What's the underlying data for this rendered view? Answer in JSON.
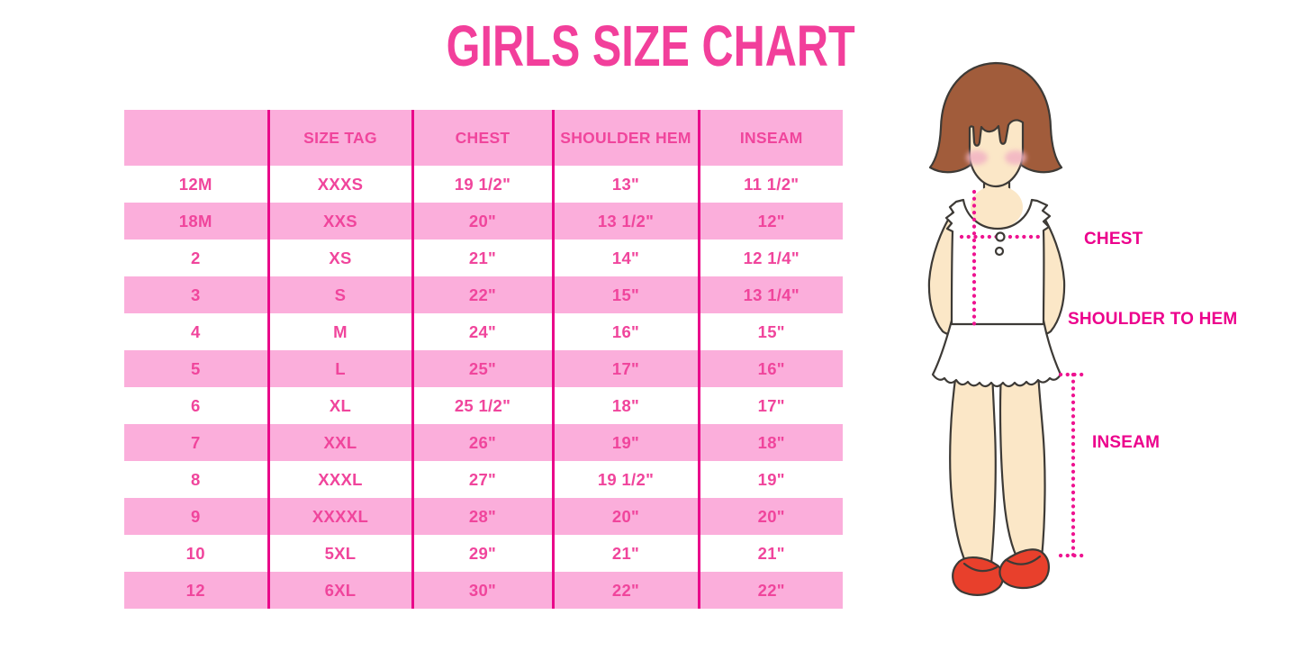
{
  "title": "GIRLS SIZE CHART",
  "table": {
    "headers": [
      "",
      "SIZE TAG",
      "CHEST",
      "SHOULDER HEM",
      "INSEAM"
    ],
    "rows": [
      [
        "12M",
        "XXXS",
        "19 1/2\"",
        "13\"",
        "11 1/2\""
      ],
      [
        "18M",
        "XXS",
        "20\"",
        "13 1/2\"",
        "12\""
      ],
      [
        "2",
        "XS",
        "21\"",
        "14\"",
        "12 1/4\""
      ],
      [
        "3",
        "S",
        "22\"",
        "15\"",
        "13 1/4\""
      ],
      [
        "4",
        "M",
        "24\"",
        "16\"",
        "15\""
      ],
      [
        "5",
        "L",
        "25\"",
        "17\"",
        "16\""
      ],
      [
        "6",
        "XL",
        "25 1/2\"",
        "18\"",
        "17\""
      ],
      [
        "7",
        "XXL",
        "26\"",
        "19\"",
        "18\""
      ],
      [
        "8",
        "XXXL",
        "27\"",
        "19 1/2\"",
        "19\""
      ],
      [
        "9",
        "XXXXL",
        "28\"",
        "20\"",
        "20\""
      ],
      [
        "10",
        "5XL",
        "29\"",
        "21\"",
        "21\""
      ],
      [
        "12",
        "6XL",
        "30\"",
        "22\"",
        "22\""
      ]
    ]
  },
  "diagram": {
    "chest_label": "CHEST",
    "shoulder_to_hem_label": "SHOULDER TO HEM",
    "inseam_label": "INSEAM"
  },
  "colors": {
    "title_pink": "#F23F9B",
    "table_text_pink": "#F0459C",
    "row_pink": "#FBAEDB",
    "grid_line": "#E9098A",
    "label_magenta": "#EC008C",
    "dot_pink": "#EE1390",
    "hair_brown": "#A15C3B",
    "skin": "#FBE7C7",
    "blush": "#F2B3C3",
    "shoe_red": "#E8402C"
  }
}
